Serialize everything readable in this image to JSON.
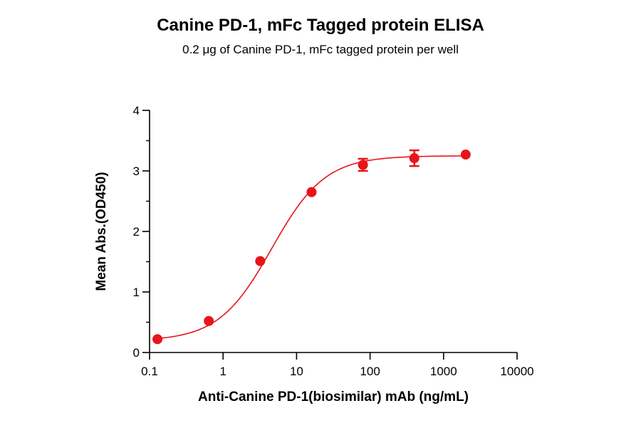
{
  "chart_data": {
    "type": "scatter",
    "title": "Canine PD-1, mFc Tagged protein ELISA",
    "subtitle": "0.2 μg of Canine PD-1, mFc tagged protein per well",
    "xlabel": "Anti-Canine PD-1(biosimilar) mAb (ng/mL)",
    "ylabel": "Mean Abs.(OD450)",
    "x_scale": "log",
    "xlim": [
      0.1,
      10000
    ],
    "ylim": [
      0,
      4
    ],
    "x_ticks": [
      "0.1",
      "1",
      "10",
      "100",
      "1000",
      "10000"
    ],
    "y_ticks": [
      "0",
      "1",
      "2",
      "3",
      "4"
    ],
    "grid": false,
    "colors": {
      "series": "#e8141b",
      "axis": "#000000"
    },
    "series": [
      {
        "x": [
          0.128,
          0.64,
          3.2,
          16,
          80,
          400,
          2000
        ],
        "y": [
          0.22,
          0.52,
          1.51,
          2.65,
          3.1,
          3.21,
          3.27
        ],
        "error": [
          0.0,
          0.0,
          0.0,
          0.0,
          0.1,
          0.13,
          0.0
        ],
        "fit": "4PL sigmoid curve"
      }
    ]
  }
}
